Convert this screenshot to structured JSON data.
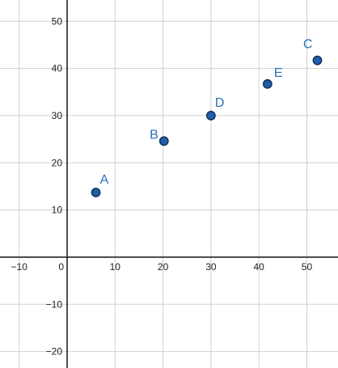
{
  "chart_data": {
    "type": "scatter",
    "xlim": [
      -14.0,
      56.5
    ],
    "ylim": [
      -23.5,
      54.5
    ],
    "x_ticks": [
      -10,
      0,
      10,
      20,
      30,
      40,
      50
    ],
    "y_ticks": [
      -20,
      -10,
      10,
      20,
      30,
      40,
      50
    ],
    "x_tick_labels": [
      "−10",
      "0",
      "10",
      "20",
      "30",
      "40",
      "50"
    ],
    "y_tick_labels": [
      "−20",
      "−10",
      "10",
      "20",
      "30",
      "40",
      "50"
    ],
    "grid": true,
    "points": [
      {
        "label": "A",
        "x": 6,
        "y": 13.7
      },
      {
        "label": "B",
        "x": 20.2,
        "y": 24.6
      },
      {
        "label": "D",
        "x": 30,
        "y": 30
      },
      {
        "label": "E",
        "x": 41.8,
        "y": 36.7
      },
      {
        "label": "C",
        "x": 52.2,
        "y": 41.7
      }
    ],
    "colors": {
      "point_fill": "#1f5ea8",
      "point_stroke": "#0f2f55",
      "label": "#2a6fb8",
      "grid": "#d0d0d0",
      "axis": "#222222"
    }
  }
}
